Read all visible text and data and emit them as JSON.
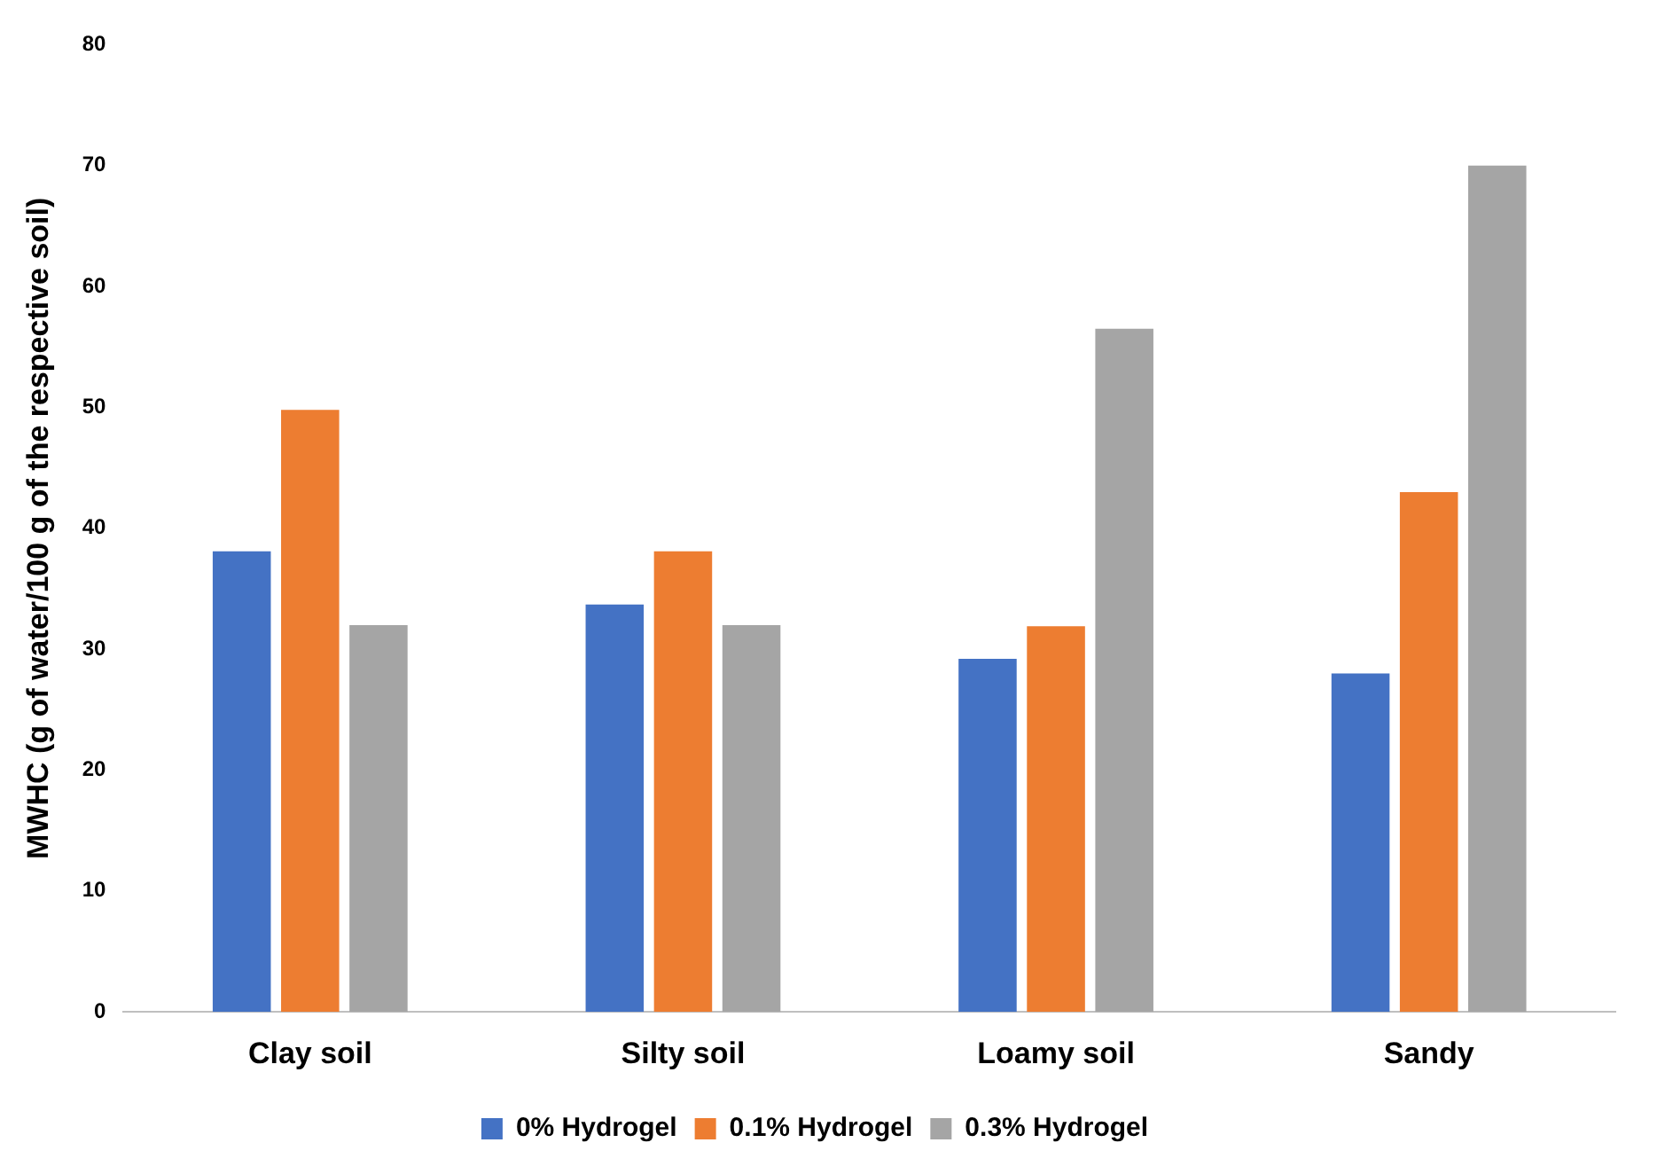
{
  "chart_data": {
    "type": "bar",
    "ylabel": "MWHC (g of water/100 g of the respective soil)",
    "categories": [
      "Clay soil",
      "Silty soil",
      "Loamy soil",
      "Sandy"
    ],
    "series": [
      {
        "name": "0% Hydrogel",
        "color": "#4472c4",
        "values": [
          38.1,
          33.7,
          29.2,
          28.0
        ]
      },
      {
        "name": "0.1% Hydrogel",
        "color": "#ed7d31",
        "values": [
          49.8,
          38.1,
          31.9,
          43.0
        ]
      },
      {
        "name": "0.3% Hydrogel",
        "color": "#a5a5a5",
        "values": [
          32.0,
          32.0,
          56.5,
          70.0
        ]
      }
    ],
    "ylim": [
      0,
      80
    ],
    "yticks": [
      0,
      10,
      20,
      30,
      40,
      50,
      60,
      70,
      80
    ],
    "grid": false,
    "legend": "bottom"
  }
}
